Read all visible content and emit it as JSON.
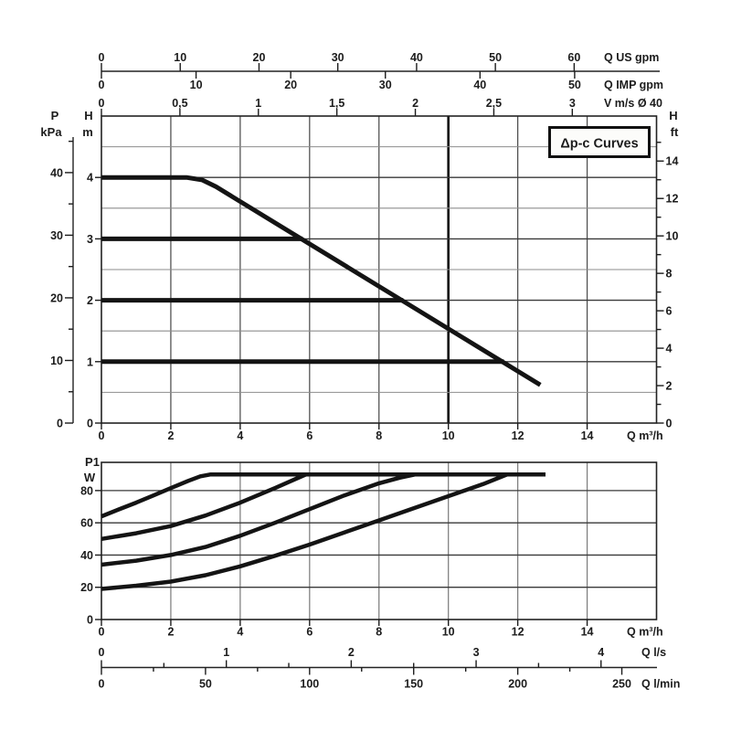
{
  "legend": {
    "label": "Δp-c Curves"
  },
  "colors": {
    "curve": "#141414",
    "grid_major": "#3a3a3a",
    "grid_minor": "#8d8d8d",
    "background": "#ffffff"
  },
  "chart_data": [
    {
      "id": "head_flow_chart",
      "type": "line",
      "title": "Δp-c Curves",
      "xlabel": "Q m³/h",
      "x_range": [
        0,
        16
      ],
      "x_tick_labels": [
        "0",
        "2",
        "4",
        "6",
        "8",
        "10",
        "12",
        "14"
      ],
      "x_tick_values": [
        0,
        2,
        4,
        6,
        8,
        10,
        12,
        14
      ],
      "x_grid_step": 2,
      "highlight_flow": 10,
      "y_axis_m": {
        "name": "H",
        "unit": "m",
        "tick_labels": [
          "0",
          "1",
          "2",
          "3",
          "4"
        ],
        "tick_values": [
          0,
          1,
          2,
          3,
          4
        ],
        "range": [
          0,
          5
        ],
        "grid_step": 0.5
      },
      "y_axis_kpa": {
        "name": "P",
        "unit": "kPa",
        "tick_labels": [
          "0",
          "10",
          "20",
          "30",
          "40"
        ],
        "tick_values": [
          0,
          10,
          20,
          30,
          40
        ],
        "minor_values": [
          5,
          15,
          25,
          35,
          45
        ],
        "kpa_per_m": 9.80665
      },
      "y_axis_ft": {
        "name": "H",
        "unit": "ft",
        "tick_labels": [
          "0",
          "2",
          "4",
          "6",
          "8",
          "10",
          "12",
          "14"
        ],
        "tick_values": [
          0,
          2,
          4,
          6,
          8,
          10,
          12,
          14
        ],
        "minor_values": [
          1,
          3,
          5,
          7,
          9,
          11,
          13,
          15
        ],
        "ft_per_m": 3.28084
      },
      "top_flow_scales": [
        {
          "label": "Q US gpm",
          "tick_labels": [
            "0",
            "10",
            "20",
            "30",
            "40",
            "50",
            "60"
          ],
          "tick_values": [
            0,
            10,
            20,
            30,
            40,
            50,
            60
          ],
          "m3h_per_unit": 0.2271
        },
        {
          "label": "Q IMP gpm",
          "tick_labels": [
            "0",
            "10",
            "20",
            "30",
            "40",
            "50"
          ],
          "tick_values": [
            0,
            10,
            20,
            30,
            40,
            50
          ],
          "m3h_per_unit": 0.2728
        },
        {
          "label": "V m/s Ø 40",
          "tick_labels": [
            "0",
            "0,5",
            "1",
            "1,5",
            "2",
            "2,5",
            "3"
          ],
          "tick_values": [
            0,
            0.5,
            1,
            1.5,
            2,
            2.5,
            3
          ],
          "m3h_per_unit": 4.524
        }
      ],
      "series": [
        {
          "name": "pump-curve-max-speed",
          "points": [
            [
              0,
              4
            ],
            [
              2.45,
              4
            ],
            [
              2.9,
              3.96
            ],
            [
              3.3,
              3.85
            ],
            [
              12.65,
              0.62
            ]
          ]
        },
        {
          "name": "dpc-setpoint-3m",
          "points": [
            [
              0,
              3
            ],
            [
              5.8,
              3
            ]
          ]
        },
        {
          "name": "dpc-setpoint-2m",
          "points": [
            [
              0,
              2
            ],
            [
              8.7,
              2
            ]
          ]
        },
        {
          "name": "dpc-setpoint-1m",
          "points": [
            [
              0,
              1
            ],
            [
              11.6,
              1
            ]
          ]
        }
      ]
    },
    {
      "id": "power_flow_chart",
      "type": "line",
      "xlabel": "Q m³/h",
      "ylabel_name": "P1",
      "ylabel_unit": "W",
      "x_range": [
        0,
        16
      ],
      "x_tick_labels": [
        "0",
        "2",
        "4",
        "6",
        "8",
        "10",
        "12",
        "14"
      ],
      "x_tick_values": [
        0,
        2,
        4,
        6,
        8,
        10,
        12,
        14
      ],
      "x_grid_step": 2,
      "y_tick_labels": [
        "0",
        "20",
        "40",
        "60",
        "80"
      ],
      "y_tick_values": [
        0,
        20,
        40,
        60,
        80
      ],
      "y_range": [
        0,
        97.5
      ],
      "series": [
        {
          "name": "power-max-setting",
          "points": [
            [
              0,
              64
            ],
            [
              0.5,
              68.3
            ],
            [
              1,
              72.5
            ],
            [
              1.5,
              77
            ],
            [
              2,
              81.5
            ],
            [
              2.5,
              86
            ],
            [
              2.85,
              88.8
            ],
            [
              3.15,
              90
            ],
            [
              12.8,
              90
            ]
          ]
        },
        {
          "name": "power-setting-3",
          "points": [
            [
              0,
              50
            ],
            [
              1,
              53.5
            ],
            [
              2,
              58
            ],
            [
              3,
              64.5
            ],
            [
              4,
              72.5
            ],
            [
              5,
              81.5
            ],
            [
              5.5,
              86.3
            ],
            [
              5.9,
              90
            ]
          ]
        },
        {
          "name": "power-setting-2",
          "points": [
            [
              0,
              34
            ],
            [
              1,
              36.5
            ],
            [
              2,
              40
            ],
            [
              3,
              45
            ],
            [
              4,
              52
            ],
            [
              5,
              60
            ],
            [
              6,
              68.5
            ],
            [
              7,
              77
            ],
            [
              8,
              84.5
            ],
            [
              8.6,
              88
            ],
            [
              9.05,
              90
            ]
          ]
        },
        {
          "name": "power-min-setting",
          "points": [
            [
              0,
              19
            ],
            [
              1,
              21
            ],
            [
              2,
              23.5
            ],
            [
              3,
              27.5
            ],
            [
              4,
              33
            ],
            [
              5,
              39.5
            ],
            [
              6,
              46.5
            ],
            [
              7,
              54
            ],
            [
              8,
              61.5
            ],
            [
              9,
              69
            ],
            [
              10,
              76.5
            ],
            [
              11,
              84
            ],
            [
              11.7,
              90
            ]
          ]
        }
      ],
      "bottom_flow_scales": [
        {
          "label": "Q l/s",
          "tick_labels": [
            "0",
            "1",
            "2",
            "3",
            "4"
          ],
          "tick_values": [
            0,
            1,
            2,
            3,
            4
          ],
          "minor_step": 0.5,
          "m3h_per_unit": 3.6,
          "side": "above"
        },
        {
          "label": "Q l/min",
          "tick_labels": [
            "0",
            "50",
            "100",
            "150",
            "200",
            "250"
          ],
          "tick_values": [
            0,
            50,
            100,
            150,
            200,
            250
          ],
          "minor_step": 25,
          "m3h_per_unit": 0.06,
          "side": "below"
        }
      ]
    }
  ]
}
